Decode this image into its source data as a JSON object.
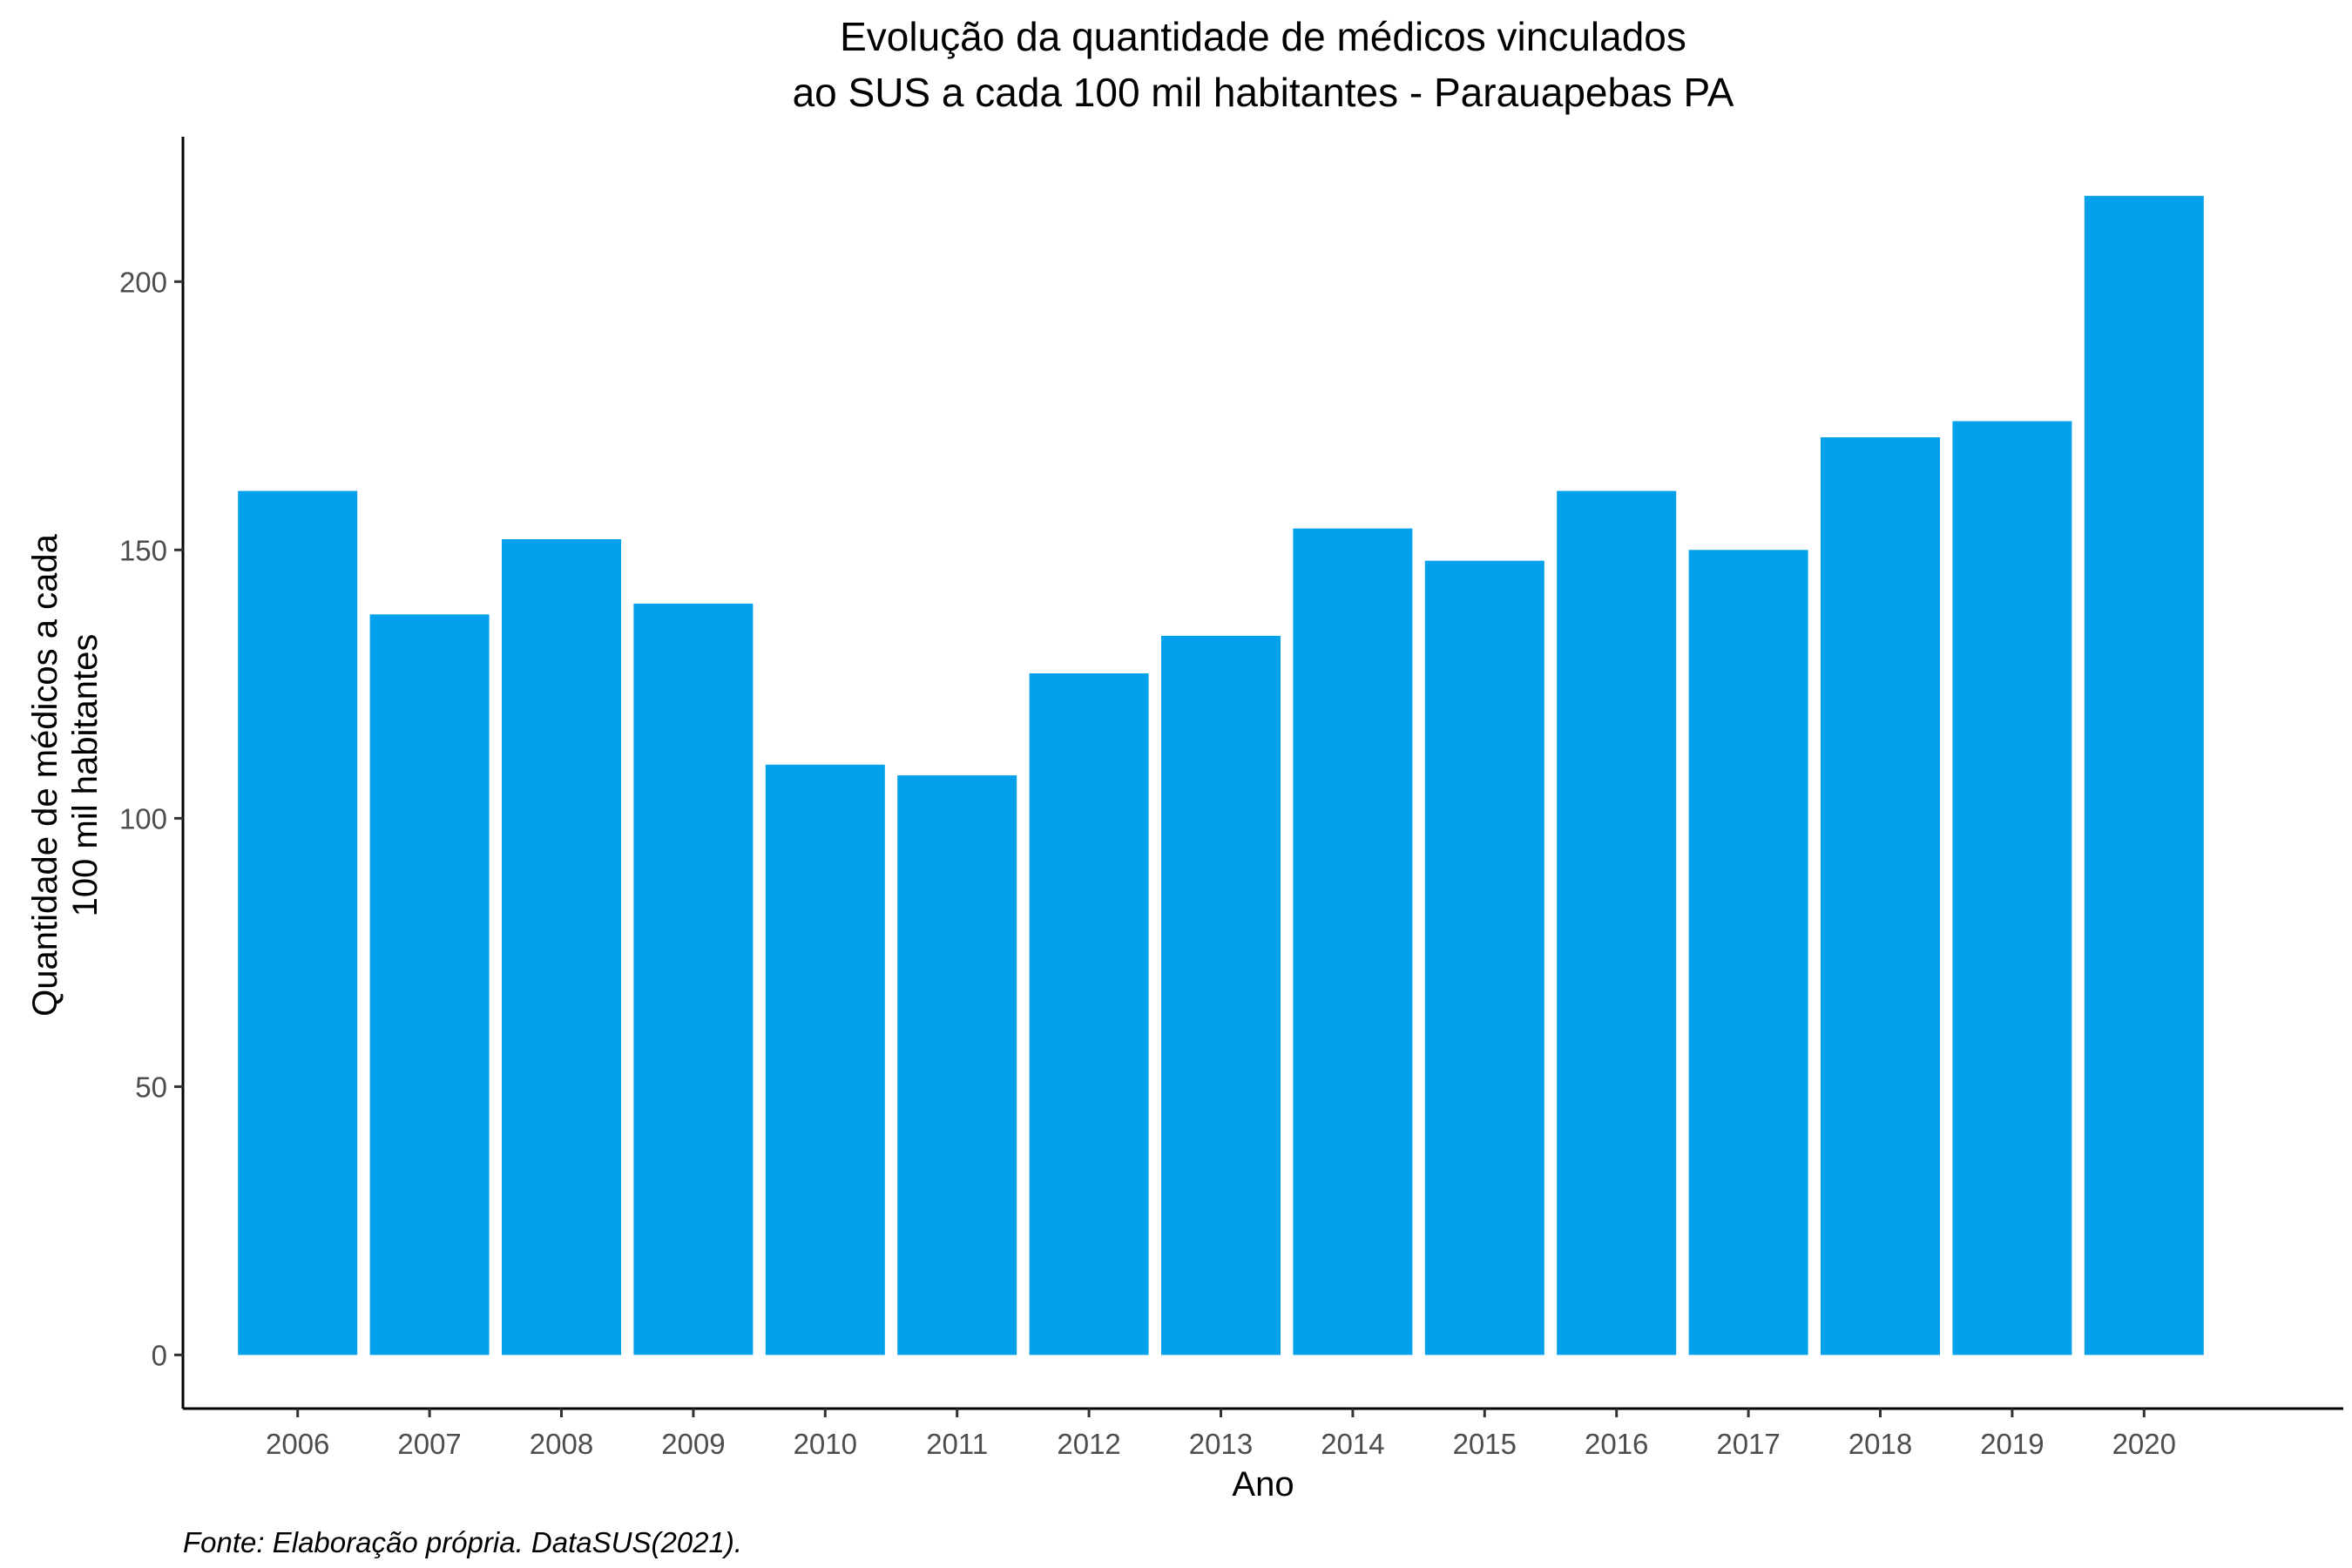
{
  "chart_data": {
    "type": "bar",
    "title_lines": [
      "Evolução da quantidade de médicos vinculados",
      "ao SUS a cada 100 mil habitantes - Parauapebas PA"
    ],
    "xlabel": "Ano",
    "ylabel_lines": [
      "Quantidade de médicos a cada",
      "100 mil habitantes"
    ],
    "caption": "Fonte: Elaboração própria. DataSUS(2021).",
    "categories": [
      "2006",
      "2007",
      "2008",
      "2009",
      "2010",
      "2011",
      "2012",
      "2013",
      "2014",
      "2015",
      "2016",
      "2017",
      "2018",
      "2019",
      "2020"
    ],
    "values": [
      161,
      138,
      152,
      140,
      110,
      108,
      127,
      134,
      154,
      148,
      161,
      150,
      171,
      174,
      216
    ],
    "yticks": [
      0,
      50,
      100,
      150,
      200
    ],
    "ylim": [
      -10,
      227
    ],
    "bar_color": "#03A1EB",
    "grid": false,
    "legend": "none"
  }
}
